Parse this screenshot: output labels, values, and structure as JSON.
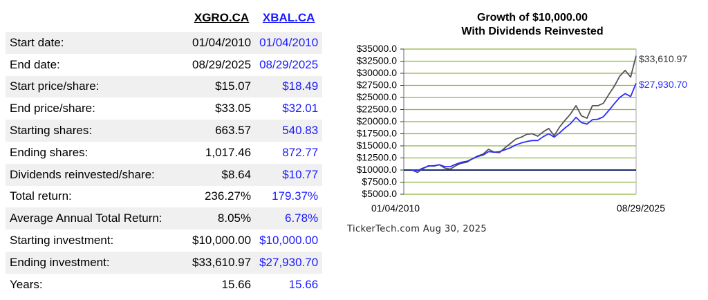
{
  "table": {
    "columns": [
      "XGRO.CA",
      "XBAL.CA"
    ],
    "rows": [
      {
        "label": "Start date:",
        "a": "01/04/2010",
        "b": "01/04/2010"
      },
      {
        "label": "End date:",
        "a": "08/29/2025",
        "b": "08/29/2025"
      },
      {
        "label": "Start price/share:",
        "a": "$15.07",
        "b": "$18.49"
      },
      {
        "label": "End price/share:",
        "a": "$33.05",
        "b": "$32.01"
      },
      {
        "label": "Starting shares:",
        "a": "663.57",
        "b": "540.83"
      },
      {
        "label": "Ending shares:",
        "a": "1,017.46",
        "b": "872.77"
      },
      {
        "label": "Dividends reinvested/share:",
        "a": "$8.64",
        "b": "$10.77"
      },
      {
        "label": "Total return:",
        "a": "236.27%",
        "b": "179.37%"
      },
      {
        "label": "Average Annual Total Return:",
        "a": "8.05%",
        "b": "6.78%"
      },
      {
        "label": "Starting investment:",
        "a": "$10,000.00",
        "b": "$10,000.00"
      },
      {
        "label": "Ending investment:",
        "a": "$33,610.97",
        "b": "$27,930.70"
      },
      {
        "label": "Years:",
        "a": "15.66",
        "b": "15.66"
      }
    ]
  },
  "chart_data": {
    "type": "line",
    "title": "Growth of $10,000.00",
    "subtitle": "With Dividends Reinvested",
    "xlabel": "",
    "ylabel": "",
    "x_start_label": "01/04/2010",
    "x_end_label": "08/29/2025",
    "ylim": [
      5000,
      35000
    ],
    "yticks": [
      "$35000.0",
      "$32500.0",
      "$30000.0",
      "$27500.0",
      "$25000.0",
      "$22500.0",
      "$20000.0",
      "$17500.0",
      "$15000.0",
      "$12500.0",
      "$10000.0",
      "$7500.0",
      "$5000.0"
    ],
    "grid": true,
    "baseline": 10000,
    "end_labels": [
      "$33,610.97",
      "$27,930.70"
    ],
    "series": [
      {
        "color": "#555555",
        "values": [
          10000,
          9500,
          10300,
          10900,
          10800,
          11100,
          10400,
          10200,
          10900,
          11400,
          11600,
          12300,
          12900,
          13300,
          14300,
          13700,
          13600,
          14600,
          15500,
          16400,
          16800,
          17400,
          17500,
          17000,
          17900,
          18600,
          17100,
          18900,
          20300,
          21600,
          23300,
          21200,
          20700,
          23300,
          23300,
          23800,
          25600,
          27300,
          29400,
          30600,
          29200,
          33610.97
        ]
      },
      {
        "color": "#2b2bff",
        "values": [
          10000,
          9900,
          10400,
          10800,
          10900,
          11100,
          10700,
          10700,
          11200,
          11600,
          11800,
          12300,
          12800,
          13100,
          13800,
          13700,
          13800,
          14200,
          14600,
          15200,
          15600,
          15900,
          16100,
          16100,
          16900,
          17500,
          16800,
          17700,
          18700,
          19600,
          20900,
          19800,
          19500,
          20400,
          20500,
          21000,
          22300,
          23700,
          25000,
          25800,
          25200,
          27930.7
        ]
      }
    ]
  },
  "credit": "TickerTech.com  Aug 30, 2025"
}
